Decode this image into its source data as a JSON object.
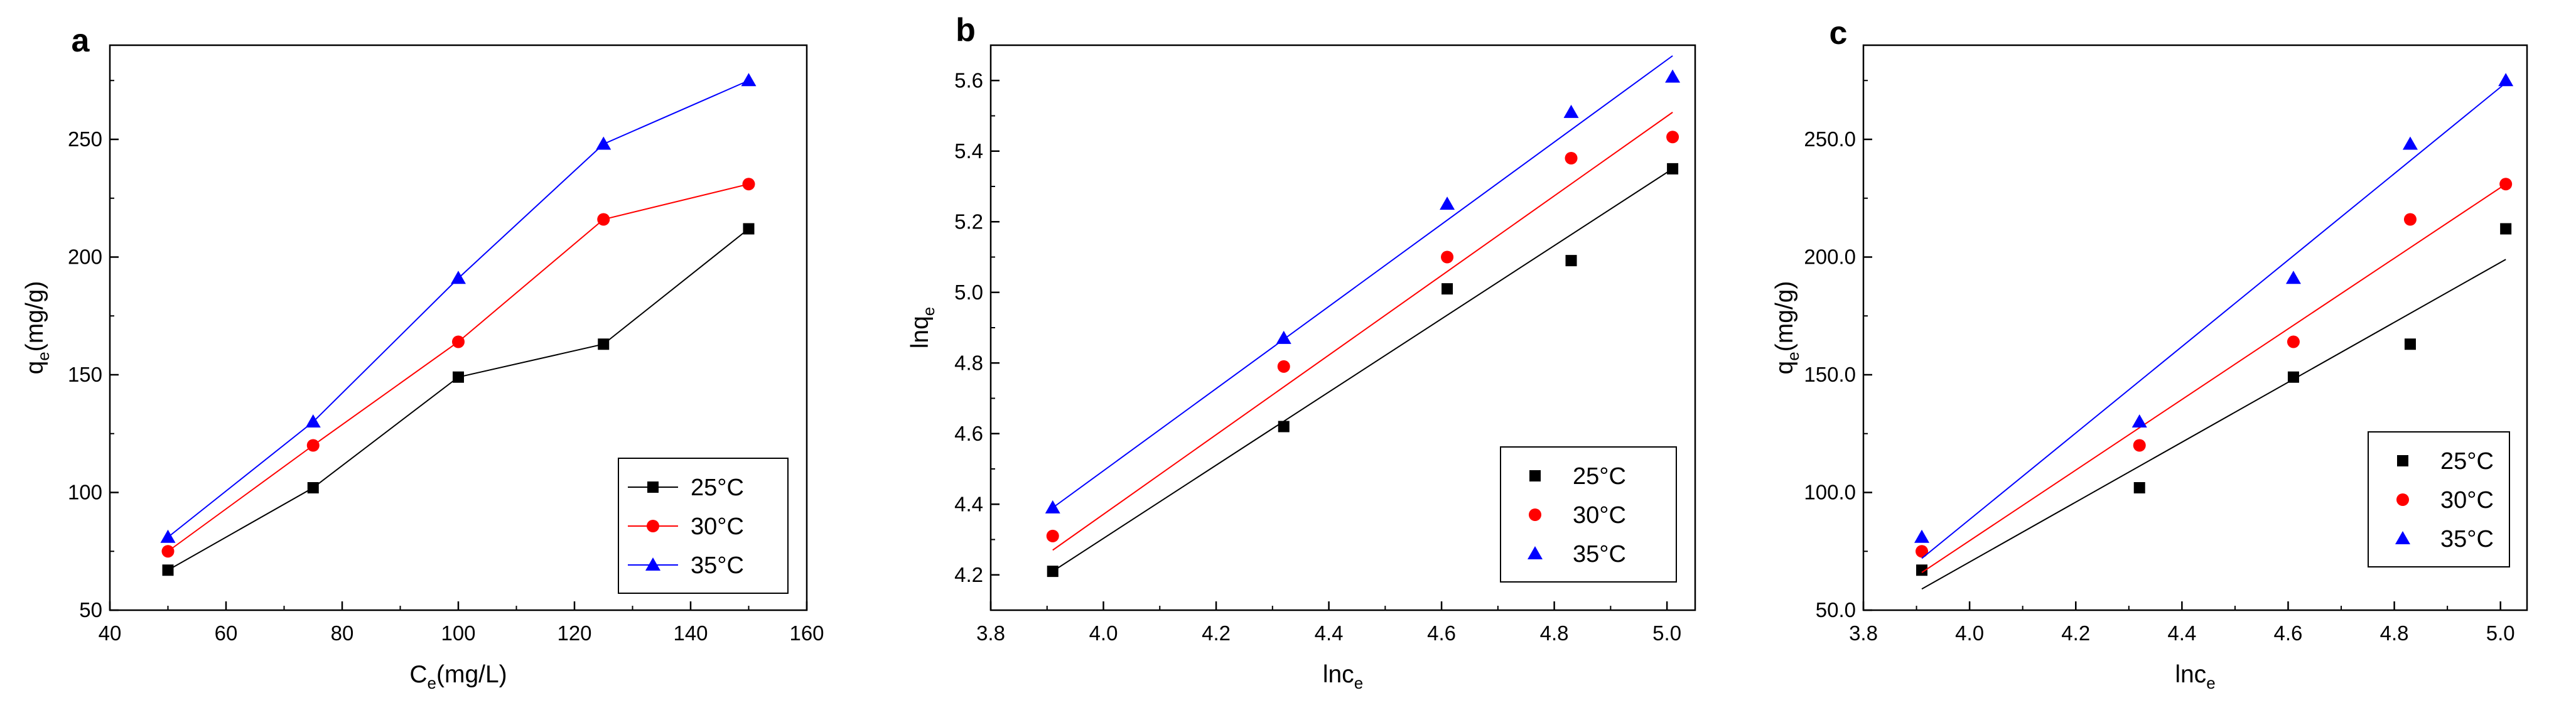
{
  "figure": {
    "panels": [
      "a",
      "b",
      "c"
    ]
  },
  "colors": {
    "25C": "#000000",
    "30C": "#ff0000",
    "35C": "#0000ff"
  },
  "chart_data": [
    {
      "panel": "a",
      "type": "line",
      "title": "",
      "xlabel": "C",
      "xlabel_sub": "e",
      "xlabel_suffix": "(mg/L)",
      "ylabel": "q",
      "ylabel_sub": "e",
      "ylabel_suffix": "(mg/g)",
      "xlim": [
        40,
        160
      ],
      "ylim": [
        50,
        290
      ],
      "xticks": [
        40,
        60,
        80,
        100,
        120,
        140,
        160
      ],
      "yticks": [
        50,
        100,
        150,
        200,
        250
      ],
      "legend_position": "bottom-right",
      "series": [
        {
          "name": "25°C",
          "color": "#000000",
          "marker": "square",
          "x": [
            50,
            75,
            100,
            125,
            150
          ],
          "values": [
            67,
            102,
            149,
            163,
            212
          ]
        },
        {
          "name": "30°C",
          "color": "#ff0000",
          "marker": "circle",
          "x": [
            50,
            75,
            100,
            125,
            150
          ],
          "values": [
            75,
            120,
            164,
            216,
            231
          ]
        },
        {
          "name": "35°C",
          "color": "#0000ff",
          "marker": "triangle",
          "x": [
            50,
            75,
            100,
            125,
            150
          ],
          "values": [
            81,
            130,
            191,
            248,
            275
          ]
        }
      ]
    },
    {
      "panel": "b",
      "type": "scatter",
      "title": "",
      "xlabel": "lnc",
      "xlabel_sub": "e",
      "xlabel_suffix": "",
      "ylabel": "lnq",
      "ylabel_sub": "e",
      "ylabel_suffix": "",
      "xlim": [
        3.8,
        5.05
      ],
      "ylim": [
        4.1,
        5.7
      ],
      "xticks": [
        3.8,
        4.0,
        4.2,
        4.4,
        4.6,
        4.8,
        5.0
      ],
      "yticks": [
        4.2,
        4.4,
        4.6,
        4.8,
        5.0,
        5.2,
        5.4,
        5.6
      ],
      "tick_decimals": 1,
      "legend_position": "bottom-right",
      "series": [
        {
          "name": "25°C",
          "color": "#000000",
          "marker": "square",
          "x": [
            3.91,
            4.32,
            4.61,
            4.83,
            5.01
          ],
          "values": [
            4.21,
            4.62,
            5.01,
            5.09,
            5.35
          ],
          "fit": [
            [
              3.91,
              4.21
            ],
            [
              5.01,
              5.35
            ]
          ]
        },
        {
          "name": "30°C",
          "color": "#ff0000",
          "marker": "circle",
          "x": [
            3.91,
            4.32,
            4.61,
            4.83,
            5.01
          ],
          "values": [
            4.31,
            4.79,
            5.1,
            5.38,
            5.44
          ],
          "fit": [
            [
              3.91,
              4.27
            ],
            [
              5.01,
              5.51
            ]
          ]
        },
        {
          "name": "35°C",
          "color": "#0000ff",
          "marker": "triangle",
          "x": [
            3.91,
            4.32,
            4.61,
            4.83,
            5.01
          ],
          "values": [
            4.39,
            4.87,
            5.25,
            5.51,
            5.61
          ],
          "fit": [
            [
              3.91,
              4.39
            ],
            [
              5.01,
              5.67
            ]
          ]
        }
      ]
    },
    {
      "panel": "c",
      "type": "scatter",
      "title": "",
      "xlabel": "lnc",
      "xlabel_sub": "e",
      "xlabel_suffix": "",
      "ylabel": "q",
      "ylabel_sub": "e",
      "ylabel_suffix": "(mg/g)",
      "xlim": [
        3.8,
        5.05
      ],
      "ylim": [
        50,
        290
      ],
      "xticks": [
        3.8,
        4.0,
        4.2,
        4.4,
        4.6,
        4.8,
        5.0
      ],
      "yticks": [
        50,
        100,
        150,
        200,
        250
      ],
      "tick_decimals": 1,
      "legend_position": "bottom-right",
      "series": [
        {
          "name": "25°C",
          "color": "#000000",
          "marker": "square",
          "x": [
            3.91,
            4.32,
            4.61,
            4.83,
            5.01
          ],
          "values": [
            67,
            102,
            149,
            163,
            212
          ],
          "fit": [
            [
              3.91,
              59
            ],
            [
              5.01,
              199
            ]
          ]
        },
        {
          "name": "30°C",
          "color": "#ff0000",
          "marker": "circle",
          "x": [
            3.91,
            4.32,
            4.61,
            4.83,
            5.01
          ],
          "values": [
            75,
            120,
            164,
            216,
            231
          ],
          "fit": [
            [
              3.91,
              66
            ],
            [
              5.01,
              231
            ]
          ]
        },
        {
          "name": "35°C",
          "color": "#0000ff",
          "marker": "triangle",
          "x": [
            3.91,
            4.32,
            4.61,
            4.83,
            5.01
          ],
          "values": [
            81,
            130,
            191,
            248,
            275
          ],
          "fit": [
            [
              3.91,
              72
            ],
            [
              5.01,
              274
            ]
          ]
        }
      ]
    }
  ]
}
